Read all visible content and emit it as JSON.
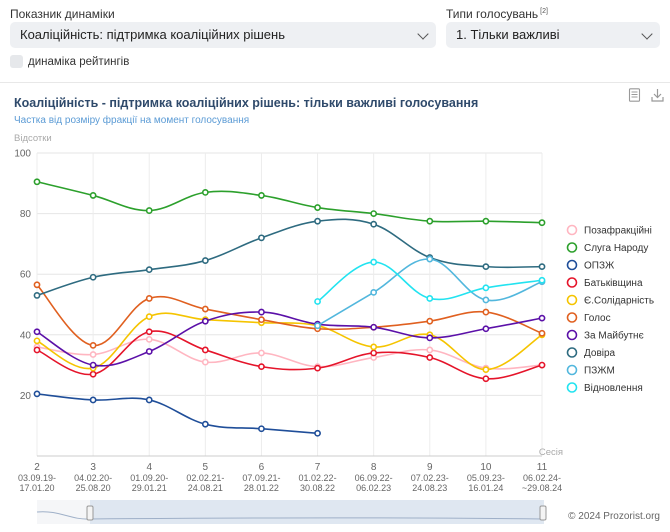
{
  "controls": {
    "dynamics_label": "Показник динаміки",
    "dynamics_value": "Коаліційність: підтримка коаліційних рішень",
    "vote_types_label": "Типи голосувань",
    "vote_types_note": "[2]",
    "vote_types_value": "1. Тільки важливі",
    "rating_dynamics_label": "динаміка рейтингів"
  },
  "chart_data": {
    "type": "line",
    "title": "Коаліційність - підтримка коаліційних рішень: тільки важливі голосування",
    "subtitle": "Частка від розміру фракції на момент голосування",
    "ylabel": "Відсотки",
    "xlabel": "Сесія",
    "ylim": [
      0,
      100
    ],
    "yticks": [
      20,
      40,
      60,
      80,
      100
    ],
    "x": [
      2,
      3,
      4,
      5,
      6,
      7,
      8,
      9,
      10,
      11
    ],
    "x_dates": [
      "03.09.19-\n17.01.20",
      "04.02.20-\n25.08.20",
      "01.09.20-\n29.01.21",
      "02.02.21-\n24.08.21",
      "07.09.21-\n28.01.22",
      "01.02.22-\n30.08.22",
      "06.09.22-\n06.02.23",
      "07.02.23-\n24.08.23",
      "05.09.23-\n16.01.24",
      "06.02.24-\n~29.08.24"
    ],
    "legend_position": "right",
    "series": [
      {
        "name": "Позафракційні",
        "color": "#ffb6c1",
        "values": [
          36,
          33.5,
          38.5,
          31,
          34,
          29.5,
          32.5,
          35,
          29,
          30
        ]
      },
      {
        "name": "Слуга Народу",
        "color": "#2ca02c",
        "values": [
          90.5,
          86,
          81,
          87,
          86,
          82,
          80,
          77.5,
          77.5,
          77
        ]
      },
      {
        "name": "ОПЗЖ",
        "color": "#1f4e99",
        "values": [
          20.5,
          18.5,
          18.5,
          10.5,
          9,
          7.5,
          null,
          null,
          null,
          null
        ]
      },
      {
        "name": "Батьківщина",
        "color": "#e5142a",
        "values": [
          35,
          27,
          41,
          35,
          29.5,
          29,
          34,
          32.5,
          25.5,
          30
        ]
      },
      {
        "name": "Є.Солідарність",
        "color": "#f5c400",
        "values": [
          38,
          29,
          46,
          45,
          44,
          43,
          36,
          40,
          28.5,
          40
        ]
      },
      {
        "name": "Голос",
        "color": "#e06020",
        "values": [
          56.5,
          36.5,
          52,
          48.5,
          45,
          42,
          42.5,
          44.5,
          47.5,
          40.5
        ]
      },
      {
        "name": "За Майбутнє",
        "color": "#5b10a8",
        "values": [
          41,
          30,
          34.5,
          44.5,
          47.5,
          43.5,
          42.5,
          39,
          42,
          45.5
        ]
      },
      {
        "name": "Довіра",
        "color": "#2e6b80",
        "values": [
          53,
          59,
          61.5,
          64.5,
          72,
          77.5,
          76.5,
          65.5,
          62.5,
          62.5
        ]
      },
      {
        "name": "ПЗЖМ",
        "color": "#52b7dd",
        "values": [
          null,
          null,
          null,
          null,
          null,
          43,
          54,
          65,
          51.5,
          57.5
        ]
      },
      {
        "name": "Відновлення",
        "color": "#22e3f0",
        "values": [
          null,
          null,
          null,
          null,
          null,
          51,
          64,
          52,
          55.5,
          58
        ]
      }
    ]
  },
  "footer": {
    "copyright": "© 2024 Prozorist.org"
  }
}
